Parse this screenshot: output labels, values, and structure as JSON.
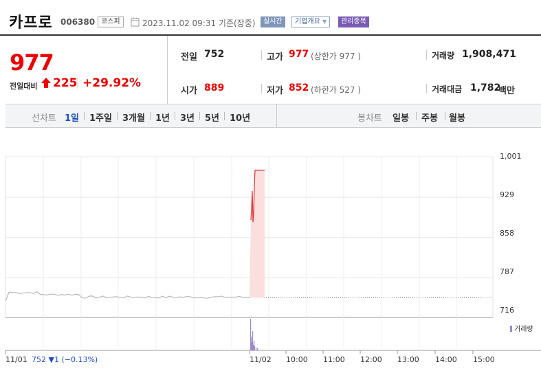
{
  "header": {
    "title": "카프로",
    "code": "006380",
    "market": "코스피",
    "datetime": "2023.11.02 09:31 기준(장중)",
    "badge_realtime": "실시간",
    "badge_company": "기업개요",
    "badge_admin": "관리종목"
  },
  "summary": {
    "price": "977",
    "change_label": "전일대비",
    "change": "225",
    "change_rate": "+29.92%",
    "prev_close_label": "전일",
    "prev_close": "752",
    "open_label": "시가",
    "open": "889",
    "high_label": "고가",
    "high": "977",
    "upper_limit": "(상한가 977 )",
    "low_label": "저가",
    "low": "852",
    "lower_limit": "(하한가 527 )",
    "volume_label": "거래량",
    "volume": "1,908,471",
    "amount_label": "거래대금",
    "amount": "1,782",
    "amount_unit": "백만"
  },
  "periodbar": {
    "line_label": "선차트",
    "line_periods": [
      "1일",
      "1주일",
      "3개월",
      "1년",
      "3년",
      "5년",
      "10년"
    ],
    "active_index": 0,
    "candle_label": "봉차트",
    "candle_periods": [
      "일봉",
      "주봉",
      "월봉"
    ]
  },
  "chart_data": {
    "type": "line",
    "y_ticks": [
      "1,001",
      "929",
      "858",
      "787",
      "716"
    ],
    "ylim": [
      716,
      1001
    ],
    "x_ticks": [
      "11/01",
      "11/02",
      "10:00",
      "11:00",
      "12:00",
      "13:00",
      "14:00",
      "15:00"
    ],
    "prev_day_info": "752 ▼1 (−0.13%)",
    "volume_legend": "거래량",
    "reference_price": 752,
    "colors": {
      "prev_day": "#b8b8b8",
      "today": "#e23b3b",
      "fill": "#fbdede",
      "volume": "#9b8ac7"
    }
  }
}
